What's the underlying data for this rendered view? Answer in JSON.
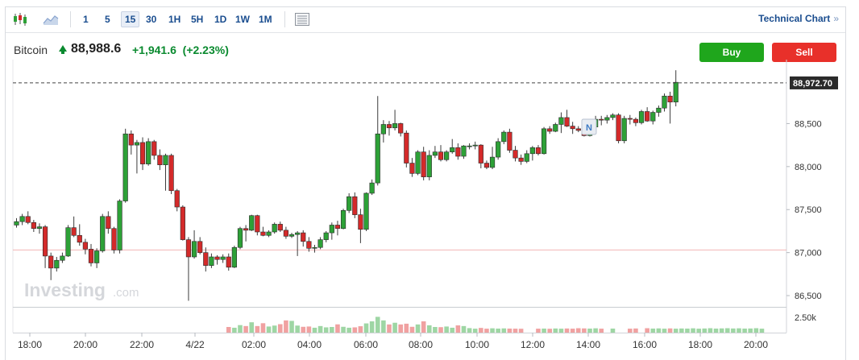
{
  "toolbar": {
    "candles_icon": "candlestick-chart-icon",
    "area_icon": "area-chart-icon",
    "timeframes": [
      "1",
      "5",
      "15",
      "30",
      "1H",
      "5H",
      "1D",
      "1W",
      "1M"
    ],
    "active_timeframe": "15",
    "settings_icon": "chart-settings-icon",
    "technical_chart_label": "Technical Chart",
    "technical_chart_chevron": "»"
  },
  "header": {
    "asset": "Bitcoin",
    "price": "88,988.6",
    "change": "+1,941.6",
    "change_pct": "(+2.23%)",
    "buy_label": "Buy",
    "sell_label": "Sell"
  },
  "watermark": "Investing",
  "watermark_suffix": ".com",
  "news_marker": "N",
  "chart_data": {
    "type": "candlestick",
    "title": "",
    "price_axis_ticks": [
      "88,500",
      "88,000",
      "87,500",
      "87,000",
      "86,500"
    ],
    "price_axis_values": [
      88500,
      88000,
      87500,
      87000,
      86500
    ],
    "volume_axis_tick": "2.50k",
    "time_axis_ticks": [
      "18:00",
      "20:00",
      "22:00",
      "4/22",
      "02:00",
      "04:00",
      "06:00",
      "08:00",
      "10:00",
      "12:00",
      "14:00",
      "16:00",
      "18:00",
      "20:00"
    ],
    "last_price_label": "88,972.70",
    "last_price": 88972.7,
    "previous_close_line": 87030,
    "ylim": [
      86360,
      89150
    ],
    "colors": {
      "up": "#2da137",
      "down": "#d42a2a",
      "vol_up": "#9ed6a4",
      "vol_down": "#f0a1a1"
    },
    "ohlc": [
      [
        87320,
        87400,
        87290,
        87360
      ],
      [
        87360,
        87450,
        87320,
        87420
      ],
      [
        87420,
        87480,
        87330,
        87350
      ],
      [
        87350,
        87380,
        87240,
        87280
      ],
      [
        87280,
        87340,
        87220,
        87300
      ],
      [
        87300,
        87320,
        86820,
        86960
      ],
      [
        86960,
        87000,
        86680,
        86820
      ],
      [
        86820,
        86950,
        86780,
        86910
      ],
      [
        86910,
        87000,
        86880,
        86960
      ],
      [
        86960,
        87320,
        86950,
        87290
      ],
      [
        87290,
        87420,
        87180,
        87200
      ],
      [
        87200,
        87330,
        87080,
        87120
      ],
      [
        87120,
        87160,
        86980,
        87040
      ],
      [
        87040,
        87100,
        86840,
        86880
      ],
      [
        86880,
        87050,
        86820,
        87020
      ],
      [
        87020,
        87450,
        87000,
        87420
      ],
      [
        87420,
        87480,
        87220,
        87280
      ],
      [
        87280,
        87300,
        86990,
        87030
      ],
      [
        87030,
        87620,
        86990,
        87600
      ],
      [
        87600,
        88440,
        87580,
        88380
      ],
      [
        88380,
        88420,
        88140,
        88250
      ],
      [
        88250,
        88310,
        87920,
        88280
      ],
      [
        88280,
        88340,
        87960,
        88030
      ],
      [
        88030,
        88330,
        88010,
        88290
      ],
      [
        88290,
        88310,
        88080,
        88130
      ],
      [
        88130,
        88200,
        87960,
        88020
      ],
      [
        88020,
        88150,
        87720,
        88130
      ],
      [
        88130,
        88150,
        87680,
        87720
      ],
      [
        87720,
        87740,
        87480,
        87530
      ],
      [
        87530,
        87550,
        87140,
        87150
      ],
      [
        87150,
        87180,
        86440,
        86950
      ],
      [
        86950,
        87260,
        86930,
        87130
      ],
      [
        87130,
        87180,
        86980,
        87000
      ],
      [
        87000,
        87060,
        86780,
        86850
      ],
      [
        86850,
        86990,
        86820,
        86950
      ],
      [
        86950,
        86970,
        86860,
        86920
      ],
      [
        86920,
        86980,
        86880,
        86950
      ],
      [
        86950,
        86990,
        86790,
        86830
      ],
      [
        86830,
        87080,
        86820,
        87060
      ],
      [
        87060,
        87300,
        87040,
        87280
      ],
      [
        87280,
        87320,
        87130,
        87260
      ],
      [
        87260,
        87440,
        87250,
        87430
      ],
      [
        87430,
        87440,
        87200,
        87240
      ],
      [
        87240,
        87300,
        87190,
        87200
      ],
      [
        87200,
        87260,
        87180,
        87240
      ],
      [
        87240,
        87350,
        87220,
        87330
      ],
      [
        87330,
        87360,
        87240,
        87260
      ],
      [
        87260,
        87300,
        87160,
        87190
      ],
      [
        87190,
        87230,
        87170,
        87210
      ],
      [
        87210,
        87250,
        86960,
        87230
      ],
      [
        87230,
        87260,
        87070,
        87130
      ],
      [
        87130,
        87180,
        87010,
        87050
      ],
      [
        87050,
        87090,
        87000,
        87060
      ],
      [
        87060,
        87180,
        87040,
        87150
      ],
      [
        87150,
        87250,
        87120,
        87230
      ],
      [
        87230,
        87350,
        87150,
        87320
      ],
      [
        87320,
        87370,
        87200,
        87280
      ],
      [
        87280,
        87510,
        87270,
        87490
      ],
      [
        87490,
        87690,
        87460,
        87650
      ],
      [
        87650,
        87700,
        87400,
        87440
      ],
      [
        87440,
        87510,
        87110,
        87270
      ],
      [
        87270,
        87700,
        87250,
        87690
      ],
      [
        87690,
        87850,
        87670,
        87810
      ],
      [
        87810,
        88820,
        87780,
        88380
      ],
      [
        88380,
        88540,
        88280,
        88490
      ],
      [
        88490,
        88530,
        88360,
        88450
      ],
      [
        88450,
        88660,
        88420,
        88500
      ],
      [
        88500,
        88510,
        88350,
        88390
      ],
      [
        88390,
        88420,
        87990,
        88040
      ],
      [
        88040,
        88100,
        87880,
        87920
      ],
      [
        87920,
        88190,
        87900,
        88170
      ],
      [
        88170,
        88230,
        87840,
        87880
      ],
      [
        87880,
        88190,
        87840,
        88130
      ],
      [
        88130,
        88240,
        88100,
        88170
      ],
      [
        88170,
        88250,
        88060,
        88080
      ],
      [
        88080,
        88190,
        88060,
        88170
      ],
      [
        88170,
        88320,
        88150,
        88220
      ],
      [
        88220,
        88270,
        88080,
        88120
      ],
      [
        88120,
        88250,
        88090,
        88240
      ],
      [
        88240,
        88270,
        88200,
        88240
      ],
      [
        88240,
        88290,
        88200,
        88250
      ],
      [
        88250,
        88260,
        87980,
        88040
      ],
      [
        88040,
        88070,
        87970,
        87990
      ],
      [
        87990,
        88230,
        87970,
        88110
      ],
      [
        88110,
        88330,
        88080,
        88290
      ],
      [
        88290,
        88420,
        88260,
        88400
      ],
      [
        88400,
        88440,
        88160,
        88190
      ],
      [
        88190,
        88240,
        88060,
        88100
      ],
      [
        88100,
        88140,
        88020,
        88060
      ],
      [
        88060,
        88190,
        88040,
        88150
      ],
      [
        88150,
        88240,
        88070,
        88220
      ],
      [
        88220,
        88250,
        88130,
        88150
      ],
      [
        88150,
        88460,
        88140,
        88440
      ],
      [
        88440,
        88470,
        88380,
        88410
      ],
      [
        88410,
        88510,
        88400,
        88490
      ],
      [
        88490,
        88630,
        88390,
        88570
      ],
      [
        88570,
        88660,
        88460,
        88470
      ],
      [
        88470,
        88520,
        88380,
        88440
      ],
      [
        88440,
        88470,
        88400,
        88420
      ],
      [
        88420,
        88460,
        88350,
        88360
      ],
      [
        88360,
        88500,
        88350,
        88460
      ],
      [
        88460,
        88590,
        88400,
        88550
      ],
      [
        88550,
        88590,
        88480,
        88540
      ],
      [
        88540,
        88600,
        88500,
        88570
      ],
      [
        88570,
        88620,
        88540,
        88600
      ],
      [
        88600,
        88620,
        88270,
        88300
      ],
      [
        88300,
        88590,
        88270,
        88560
      ],
      [
        88560,
        88600,
        88490,
        88550
      ],
      [
        88550,
        88570,
        88470,
        88510
      ],
      [
        88510,
        88660,
        88490,
        88640
      ],
      [
        88640,
        88690,
        88520,
        88530
      ],
      [
        88530,
        88650,
        88490,
        88630
      ],
      [
        88630,
        88710,
        88580,
        88680
      ],
      [
        88680,
        88850,
        88640,
        88820
      ],
      [
        88820,
        88870,
        88500,
        88750
      ],
      [
        88750,
        89120,
        88700,
        88980
      ]
    ],
    "volume": [
      [
        37,
        600
      ],
      [
        38,
        520
      ],
      [
        39,
        800
      ],
      [
        40,
        700
      ],
      [
        41,
        1100
      ],
      [
        42,
        700
      ],
      [
        43,
        1000
      ],
      [
        44,
        650
      ],
      [
        45,
        750
      ],
      [
        46,
        900
      ],
      [
        47,
        1300
      ],
      [
        48,
        1250
      ],
      [
        49,
        750
      ],
      [
        50,
        620
      ],
      [
        51,
        650
      ],
      [
        52,
        520
      ],
      [
        53,
        700
      ],
      [
        54,
        560
      ],
      [
        55,
        600
      ],
      [
        56,
        880
      ],
      [
        57,
        620
      ],
      [
        58,
        520
      ],
      [
        59,
        560
      ],
      [
        60,
        680
      ],
      [
        61,
        980
      ],
      [
        62,
        1200
      ],
      [
        63,
        1680
      ],
      [
        64,
        1300
      ],
      [
        65,
        870
      ],
      [
        66,
        1050
      ],
      [
        67,
        870
      ],
      [
        68,
        950
      ],
      [
        69,
        620
      ],
      [
        70,
        870
      ],
      [
        71,
        1200
      ],
      [
        72,
        780
      ],
      [
        73,
        600
      ],
      [
        74,
        580
      ],
      [
        75,
        650
      ],
      [
        76,
        520
      ],
      [
        77,
        770
      ],
      [
        78,
        700
      ],
      [
        79,
        480
      ],
      [
        80,
        420
      ],
      [
        81,
        500
      ],
      [
        82,
        420
      ],
      [
        83,
        460
      ],
      [
        84,
        430
      ],
      [
        85,
        450
      ],
      [
        86,
        430
      ],
      [
        87,
        420
      ],
      [
        88,
        410
      ],
      [
        91,
        420
      ],
      [
        92,
        430
      ],
      [
        93,
        410
      ],
      [
        94,
        440
      ],
      [
        95,
        420
      ],
      [
        96,
        440
      ],
      [
        97,
        420
      ],
      [
        98,
        470
      ],
      [
        99,
        450
      ],
      [
        100,
        430
      ],
      [
        101,
        460
      ],
      [
        102,
        420
      ],
      [
        104,
        430
      ],
      [
        107,
        420
      ],
      [
        108,
        440
      ],
      [
        110,
        470
      ],
      [
        111,
        430
      ],
      [
        112,
        450
      ],
      [
        113,
        420
      ],
      [
        114,
        450
      ],
      [
        115,
        420
      ],
      [
        116,
        440
      ],
      [
        117,
        430
      ],
      [
        118,
        460
      ],
      [
        119,
        420
      ],
      [
        120,
        440
      ],
      [
        121,
        470
      ],
      [
        122,
        430
      ],
      [
        123,
        450
      ],
      [
        124,
        470
      ],
      [
        125,
        440
      ],
      [
        126,
        460
      ],
      [
        127,
        430
      ],
      [
        128,
        440
      ],
      [
        129,
        470
      ],
      [
        130,
        420
      ]
    ],
    "volume_max": 3000
  }
}
